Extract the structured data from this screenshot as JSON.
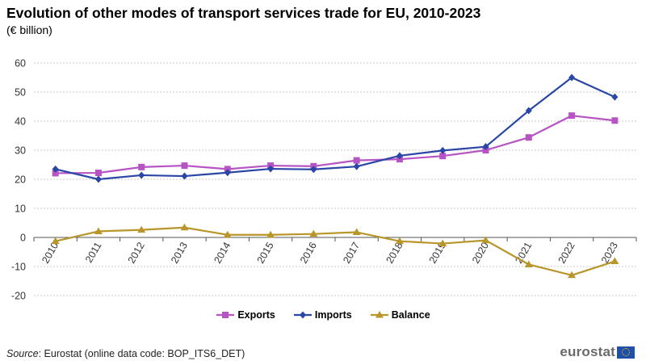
{
  "title": "Evolution of other modes of transport services trade for EU, 2010-2023",
  "subtitle": "(€ billion)",
  "source_label": "Source",
  "source_text": ": Eurostat (online data code: BOP_ITS6_DET)",
  "logo_text": "eurostat",
  "chart_data": {
    "type": "line",
    "title": "Evolution of other modes of transport services trade for EU, 2010-2023",
    "subtitle": "(€ billion)",
    "xlabel": "",
    "ylabel": "",
    "categories": [
      "2010",
      "2011",
      "2012",
      "2013",
      "2014",
      "2015",
      "2016",
      "2017",
      "2018",
      "2019",
      "2020",
      "2021",
      "2022",
      "2023"
    ],
    "ylim": [
      -20,
      60
    ],
    "yticks": [
      -20,
      -10,
      0,
      10,
      20,
      30,
      40,
      50,
      60
    ],
    "grid": true,
    "legend_position": "bottom-center",
    "series": [
      {
        "name": "Exports",
        "color": "#b654c3",
        "marker": "square",
        "values": [
          22.1,
          22.2,
          24.2,
          24.7,
          23.5,
          24.7,
          24.5,
          26.5,
          26.9,
          28.0,
          30.0,
          34.4,
          41.9,
          40.2
        ]
      },
      {
        "name": "Imports",
        "color": "#2a46a6",
        "marker": "diamond",
        "values": [
          23.5,
          20.0,
          21.4,
          21.1,
          22.3,
          23.6,
          23.4,
          24.4,
          28.1,
          29.9,
          31.2,
          43.6,
          55.0,
          48.3
        ]
      },
      {
        "name": "Balance",
        "color": "#b8962a",
        "marker": "triangle",
        "values": [
          -1.3,
          2.1,
          2.6,
          3.4,
          0.9,
          0.9,
          1.2,
          1.8,
          -1.3,
          -2.1,
          -1.0,
          -9.3,
          -13.0,
          -8.2
        ]
      }
    ]
  }
}
